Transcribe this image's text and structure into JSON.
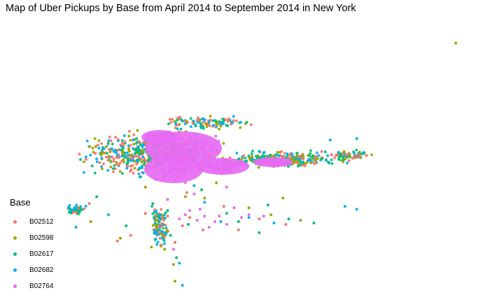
{
  "chart_data": {
    "type": "scatter",
    "title": "Map of Uber Pickups by Base from April 2014 to September 2014 in New York",
    "legend": {
      "title": "Base",
      "position": "left"
    },
    "axes": "none",
    "grid": false,
    "xlim": [
      -74.95,
      -72.07
    ],
    "ylim": [
      40.2,
      42.12
    ],
    "series": [
      {
        "name": "B02512",
        "color": "#F8766D",
        "points": [
          [
            -74.1,
            40.74
          ],
          [
            -73.86,
            40.64
          ],
          [
            -74.44,
            40.56
          ],
          [
            -73.62,
            40.64
          ],
          [
            -73.97,
            40.91
          ],
          [
            -74.25,
            40.76
          ],
          [
            -74.05,
            40.55
          ],
          [
            -73.72,
            40.81
          ],
          [
            -73.48,
            40.72
          ],
          [
            -74.63,
            40.83
          ],
          [
            -73.3,
            40.68
          ],
          [
            -74.0,
            40.67
          ],
          [
            -73.95,
            40.73
          ],
          [
            -74.35,
            40.6
          ]
        ]
      },
      {
        "name": "B02598",
        "color": "#A3A500",
        "points": [
          [
            -72.15,
            41.99
          ],
          [
            -74.42,
            40.58
          ],
          [
            -73.77,
            40.98
          ],
          [
            -74.06,
            40.39
          ],
          [
            -74.05,
            40.27
          ],
          [
            -73.98,
            40.88
          ],
          [
            -73.2,
            40.71
          ],
          [
            -73.55,
            40.8
          ],
          [
            -73.32,
            40.87
          ],
          [
            -74.25,
            40.95
          ],
          [
            -74.62,
            40.7
          ],
          [
            -73.4,
            40.75
          ],
          [
            -74.12,
            40.5
          ],
          [
            -73.85,
            40.87
          ]
        ]
      },
      {
        "name": "B02617",
        "color": "#00BF7D",
        "points": [
          [
            -74.1,
            40.78
          ],
          [
            -73.48,
            40.62
          ],
          [
            -74.38,
            40.67
          ],
          [
            -73.96,
            40.68
          ],
          [
            -74.04,
            40.44
          ],
          [
            -73.87,
            40.93
          ],
          [
            -73.28,
            40.72
          ],
          [
            -74.58,
            40.88
          ],
          [
            -73.62,
            40.7
          ],
          [
            -74.2,
            40.83
          ],
          [
            -73.11,
            40.69
          ],
          [
            -73.42,
            40.82
          ],
          [
            -74.08,
            40.6
          ],
          [
            -73.7,
            40.76
          ]
        ]
      },
      {
        "name": "B02682",
        "color": "#00B0F6",
        "points": [
          [
            -73.0,
            41.29
          ],
          [
            -72.82,
            41.3
          ],
          [
            -74.72,
            40.66
          ],
          [
            -74.15,
            40.75
          ],
          [
            -73.92,
            40.96
          ],
          [
            -74.0,
            40.24
          ],
          [
            -73.38,
            40.69
          ],
          [
            -74.02,
            40.4
          ],
          [
            -72.82,
            40.79
          ],
          [
            -72.9,
            40.81
          ],
          [
            -73.74,
            40.7
          ],
          [
            -74.5,
            40.75
          ],
          [
            -73.55,
            40.73
          ],
          [
            -73.85,
            40.84
          ]
        ]
      },
      {
        "name": "B02764",
        "color": "#E76BF3",
        "points": [
          [
            -73.98,
            40.75
          ],
          [
            -73.95,
            40.78
          ],
          [
            -73.85,
            40.74
          ],
          [
            -73.9,
            40.71
          ],
          [
            -73.78,
            40.7
          ],
          [
            -73.6,
            40.73
          ],
          [
            -73.55,
            40.75
          ],
          [
            -73.7,
            40.68
          ],
          [
            -74.02,
            40.72
          ],
          [
            -73.82,
            40.66
          ],
          [
            -74.1,
            40.86
          ],
          [
            -73.7,
            40.95
          ],
          [
            -73.92,
            40.9
          ],
          [
            -73.65,
            40.8
          ],
          [
            -74.06,
            40.5
          ],
          [
            -73.45,
            40.74
          ],
          [
            -73.88,
            40.79
          ],
          [
            -73.75,
            40.74
          ]
        ]
      }
    ]
  }
}
